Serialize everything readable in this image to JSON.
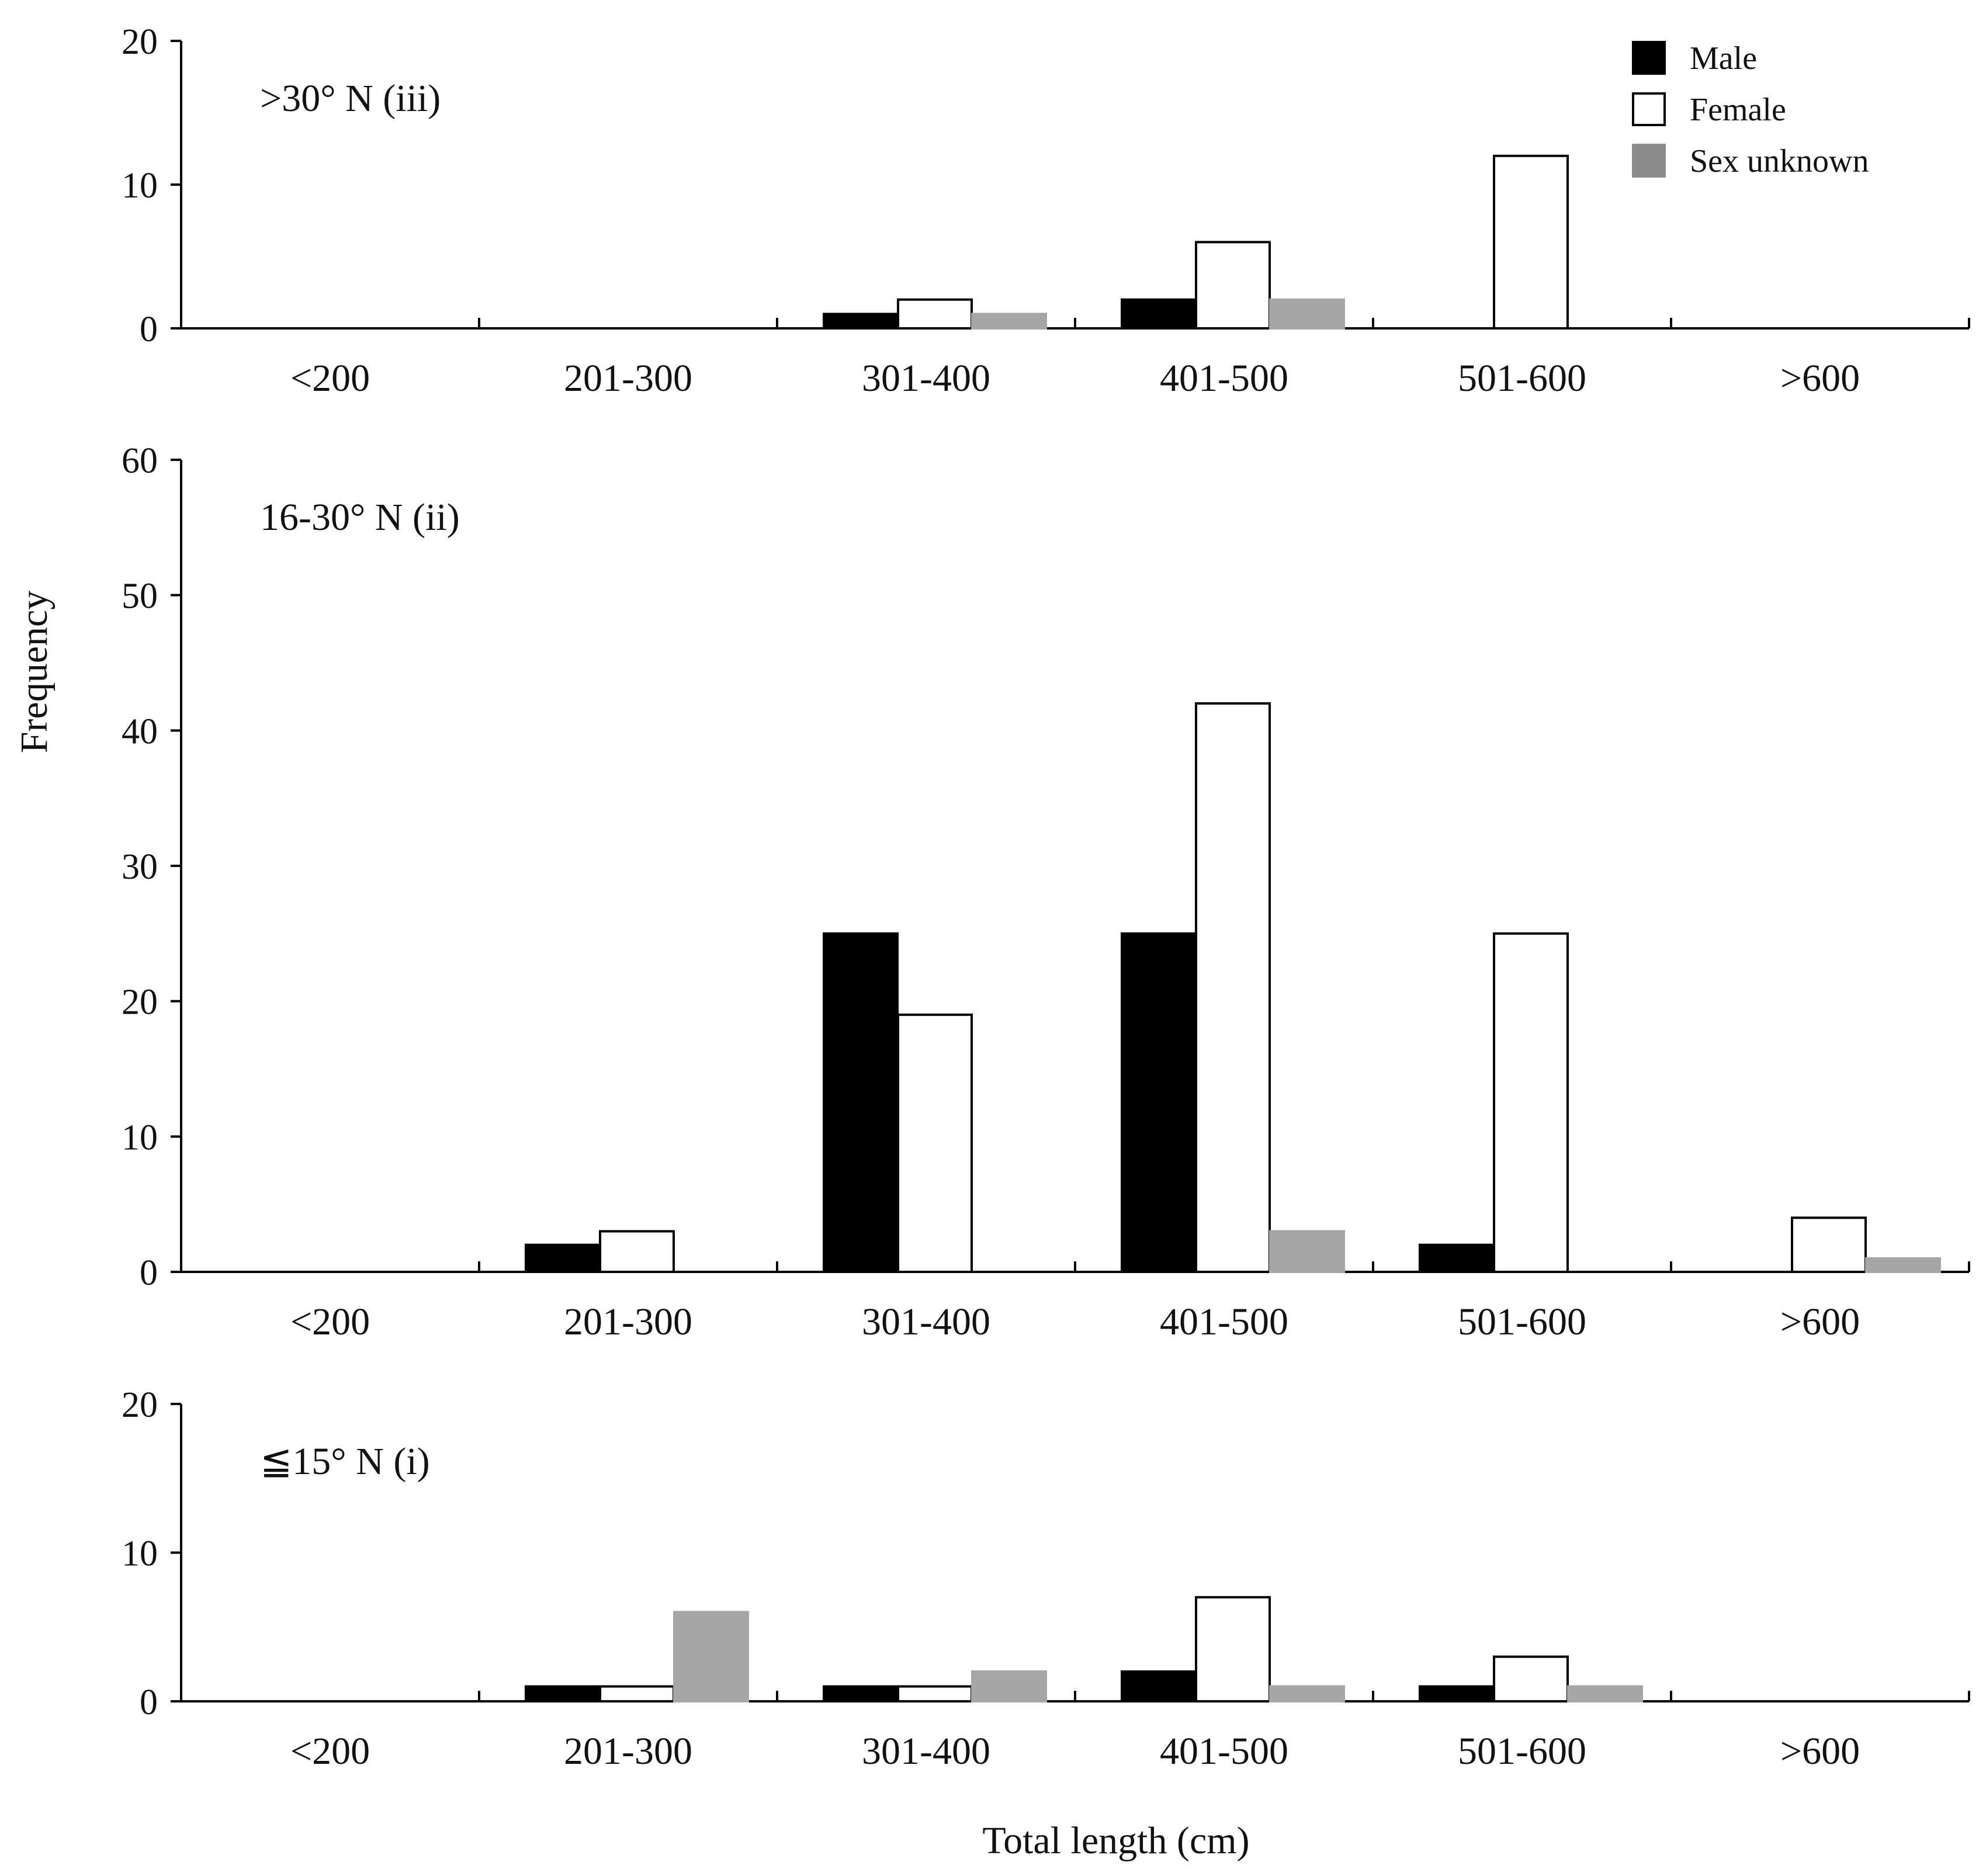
{
  "chart_data": {
    "type": "bar",
    "ylabel": "Frequency",
    "xlabel": "Total length (cm)",
    "categories": [
      "<200",
      "201-300",
      "301-400",
      "401-500",
      "501-600",
      ">600"
    ],
    "legend": {
      "position": "top-right",
      "entries": [
        {
          "name": "Male",
          "color": "#000000"
        },
        {
          "name": "Female",
          "color": "#ffffff"
        },
        {
          "name": "Sex unknown",
          "color": "#8c8c8c"
        }
      ]
    },
    "panels": [
      {
        "title": ">30° N (iii)",
        "ylim": [
          0,
          20
        ],
        "yticks": [
          0,
          10,
          20
        ],
        "series": [
          {
            "name": "Male",
            "values": [
              0,
              0,
              1,
              2,
              0,
              0
            ]
          },
          {
            "name": "Female",
            "values": [
              0,
              0,
              2,
              6,
              12,
              0
            ]
          },
          {
            "name": "Sex unknown",
            "values": [
              0,
              0,
              1,
              2,
              0,
              0
            ]
          }
        ]
      },
      {
        "title": "16-30° N (ii)",
        "ylim": [
          0,
          60
        ],
        "yticks": [
          0,
          10,
          20,
          30,
          40,
          50,
          60
        ],
        "series": [
          {
            "name": "Male",
            "values": [
              0,
              2,
              25,
              25,
              2,
              0
            ]
          },
          {
            "name": "Female",
            "values": [
              0,
              3,
              19,
              42,
              25,
              4
            ]
          },
          {
            "name": "Sex unknown",
            "values": [
              0,
              0,
              0,
              3,
              0,
              1
            ]
          }
        ]
      },
      {
        "title": "≦15° N (i)",
        "ylim": [
          0,
          20
        ],
        "yticks": [
          0,
          10,
          20
        ],
        "series": [
          {
            "name": "Male",
            "values": [
              0,
              1,
              1,
              2,
              1,
              0
            ]
          },
          {
            "name": "Female",
            "values": [
              0,
              1,
              1,
              7,
              3,
              0
            ]
          },
          {
            "name": "Sex unknown",
            "values": [
              0,
              6,
              2,
              1,
              1,
              0
            ]
          }
        ]
      }
    ]
  }
}
